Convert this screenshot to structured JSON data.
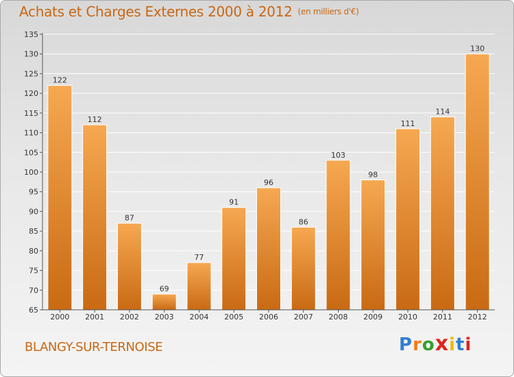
{
  "title": "Achats et Charges Externes 2000 à 2012",
  "unit_label": "(en milliers d'€)",
  "location": "BLANGY-SUR-TERNOISE",
  "logo": {
    "letters": [
      "P",
      "r",
      "o",
      "x",
      "i",
      "t",
      "i"
    ]
  },
  "colors": {
    "title": "#c86814",
    "bar_top": "#f6a851",
    "bar_bottom": "#c96a14",
    "grid": "#ffffff",
    "axis": "#555555"
  },
  "chart_data": {
    "type": "bar",
    "categories": [
      "2000",
      "2001",
      "2002",
      "2003",
      "2004",
      "2005",
      "2006",
      "2007",
      "2008",
      "2009",
      "2010",
      "2011",
      "2012"
    ],
    "values": [
      122,
      112,
      87,
      69,
      77,
      91,
      96,
      86,
      103,
      98,
      111,
      114,
      130
    ],
    "title": "Achats et Charges Externes 2000 à 2012",
    "subtitle": "(en milliers d'€)",
    "ylim": [
      65,
      135
    ],
    "yticks": [
      65,
      70,
      75,
      80,
      85,
      90,
      95,
      100,
      105,
      110,
      115,
      120,
      125,
      130,
      135
    ],
    "grid": true
  }
}
